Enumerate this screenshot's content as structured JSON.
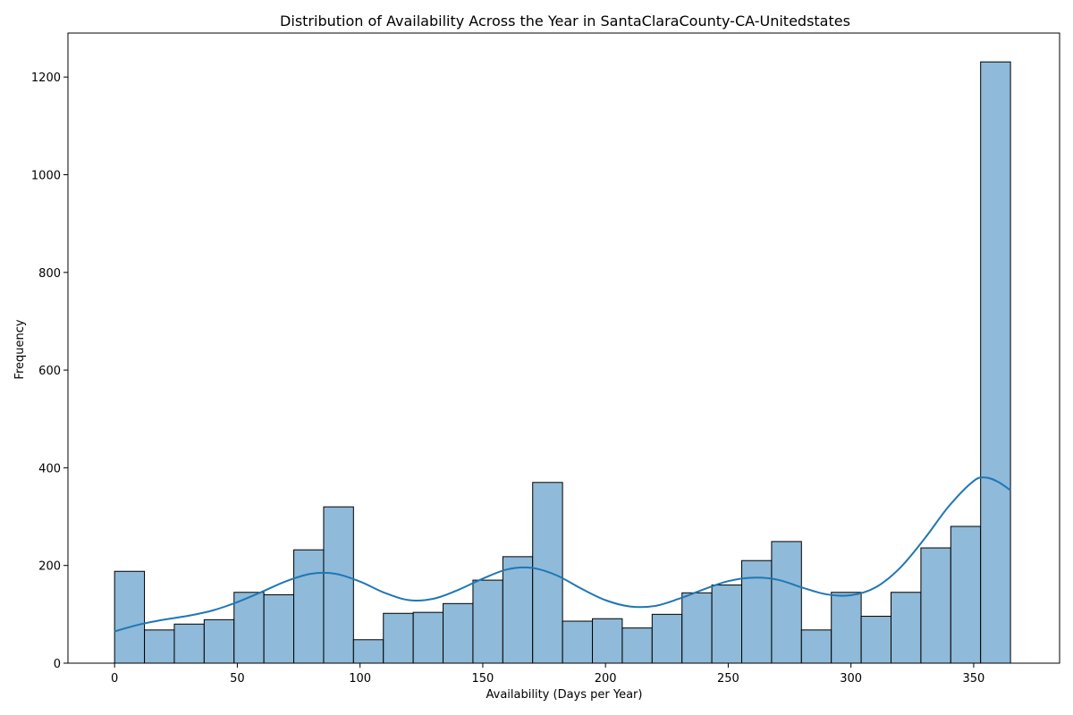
{
  "chart_data": {
    "type": "bar",
    "title": "Distribution of Availability Across the Year in SantaClaraCounty-CA-Unitedstates",
    "xlabel": "Availability (Days per Year)",
    "ylabel": "Frequency",
    "xlim": [
      -19,
      385
    ],
    "ylim": [
      0,
      1290
    ],
    "x_ticks": [
      0,
      50,
      100,
      150,
      200,
      250,
      300,
      350
    ],
    "y_ticks": [
      0,
      200,
      400,
      600,
      800,
      1000,
      1200
    ],
    "grid": false,
    "legend": "none",
    "bin_edges": [
      0,
      12.17,
      24.33,
      36.5,
      48.67,
      60.83,
      73,
      85.17,
      97.33,
      109.5,
      121.67,
      133.83,
      146,
      158.17,
      170.33,
      182.5,
      194.67,
      206.83,
      219,
      231.17,
      243.33,
      255.5,
      267.67,
      279.83,
      292,
      304.17,
      316.33,
      328.5,
      340.67,
      352.83,
      365
    ],
    "counts": [
      188,
      68,
      80,
      89,
      145,
      140,
      232,
      320,
      48,
      102,
      104,
      122,
      170,
      218,
      370,
      86,
      91,
      72,
      100,
      144,
      160,
      210,
      249,
      68,
      145,
      96,
      145,
      236,
      280,
      1231
    ],
    "kde": {
      "x": [
        0,
        10,
        20,
        30,
        40,
        50,
        60,
        70,
        80,
        90,
        100,
        110,
        120,
        130,
        140,
        150,
        160,
        170,
        180,
        190,
        200,
        210,
        220,
        230,
        240,
        250,
        260,
        270,
        280,
        290,
        300,
        310,
        320,
        330,
        340,
        350,
        355,
        360,
        365
      ],
      "y": [
        65,
        79,
        89,
        97,
        108,
        125,
        146,
        168,
        183,
        183,
        167,
        144,
        129,
        132,
        150,
        173,
        192,
        195,
        180,
        153,
        129,
        116,
        117,
        132,
        151,
        168,
        175,
        171,
        155,
        141,
        139,
        155,
        195,
        255,
        322,
        373,
        380,
        371,
        354
      ]
    },
    "colors": {
      "bar_fill": "#8fbad9",
      "bar_edge": "#000000",
      "kde_line": "#1f77b4",
      "axes": "#000000"
    }
  }
}
